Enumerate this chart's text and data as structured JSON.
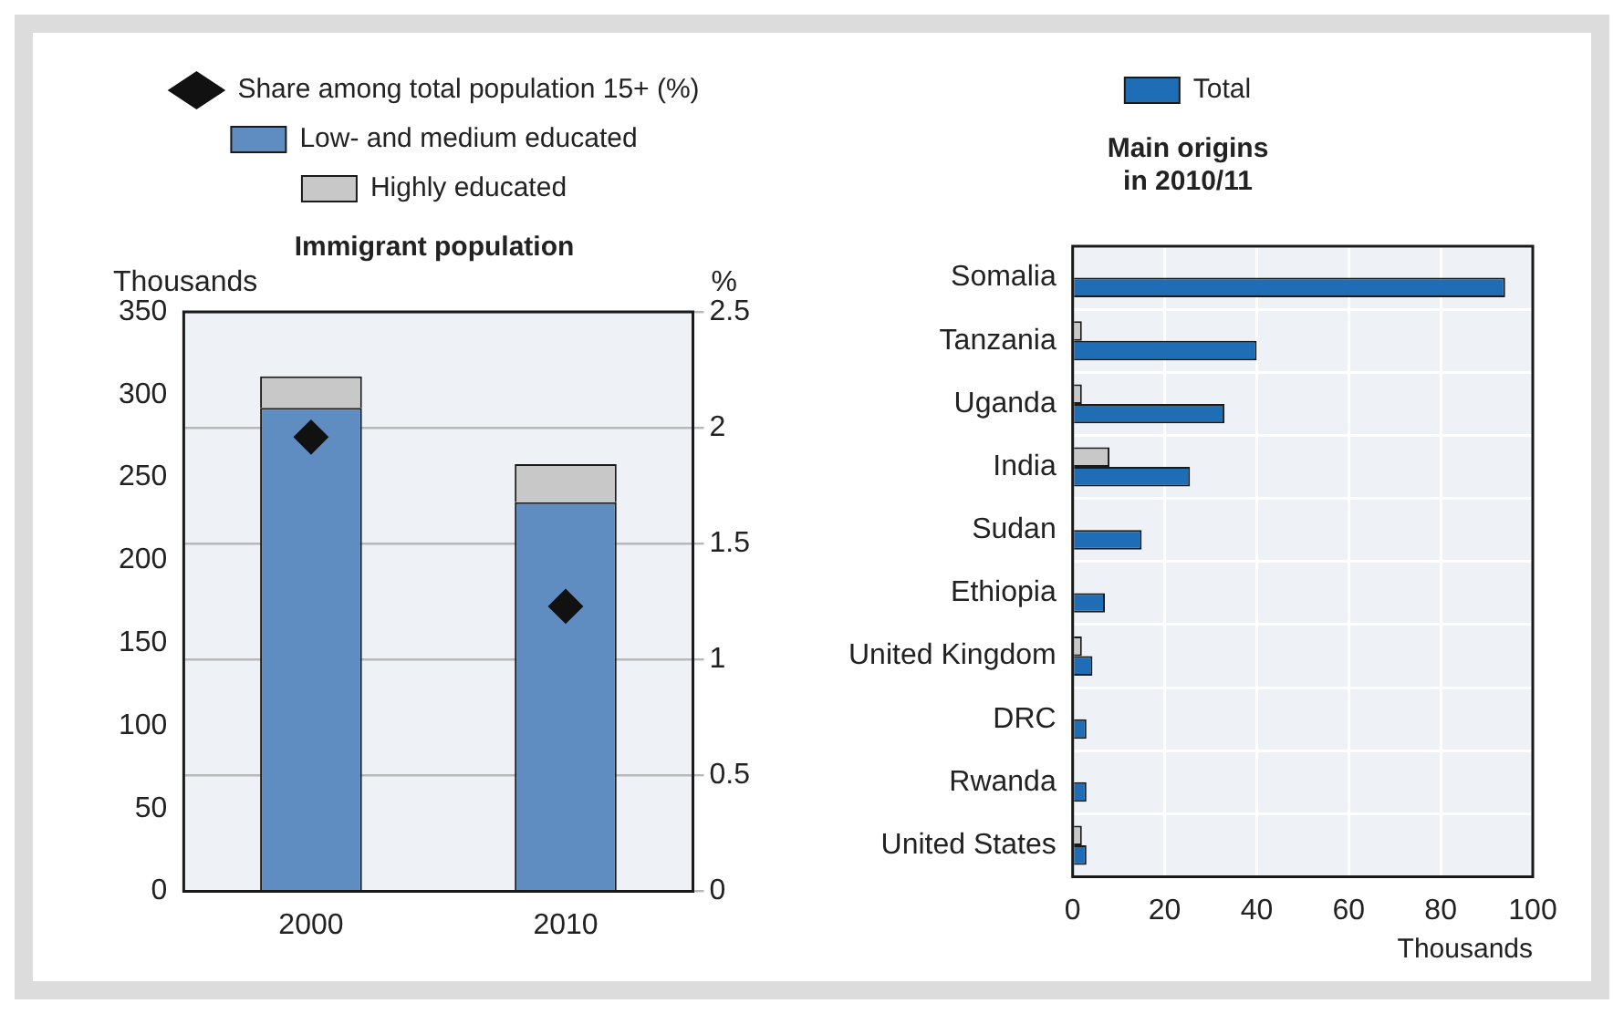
{
  "chart_data": [
    {
      "type": "bar",
      "title": "Immigrant population",
      "ylabel": "Thousands",
      "y2label": "%",
      "categories": [
        "2000",
        "2010"
      ],
      "stacked": true,
      "legend": "top",
      "grid": "y",
      "ylim": [
        0,
        350
      ],
      "yticks": [
        0,
        50,
        100,
        150,
        200,
        250,
        300,
        350
      ],
      "y2lim": [
        0,
        2.5
      ],
      "y2ticks": [
        0,
        0.5,
        1.0,
        1.5,
        2.0,
        2.5
      ],
      "series": [
        {
          "name": "Low- and medium educated",
          "color": "#5f8dc1",
          "values": [
            292,
            235
          ]
        },
        {
          "name": "Highly educated",
          "color": "#c8c8c8",
          "values": [
            19,
            23
          ]
        },
        {
          "name": "Share among total population 15+ (%)",
          "type": "scatter",
          "axis": "y2",
          "marker": "diamond",
          "color": "#111111",
          "values": [
            1.96,
            1.23
          ]
        }
      ]
    },
    {
      "type": "bar",
      "title": "Main origins in 2010/11",
      "xlabel": "Thousands",
      "orientation": "horizontal",
      "legend": "top",
      "grid": true,
      "categories": [
        "Somalia",
        "Tanzania",
        "Uganda",
        "India",
        "Sudan",
        "Ethiopia",
        "United Kingdom",
        "DRC",
        "Rwanda",
        "United States"
      ],
      "xlim": [
        0,
        100
      ],
      "xticks": [
        0,
        20,
        40,
        60,
        80,
        100
      ],
      "series": [
        {
          "color": "#c8c8c8",
          "values": [
            null,
            2,
            2,
            8,
            null,
            null,
            2,
            null,
            null,
            2
          ]
        },
        {
          "name": "Total",
          "color": "#1f6eb5",
          "values": [
            94,
            40,
            33,
            25.5,
            15,
            7,
            4.3,
            3,
            3,
            3
          ]
        }
      ]
    }
  ]
}
